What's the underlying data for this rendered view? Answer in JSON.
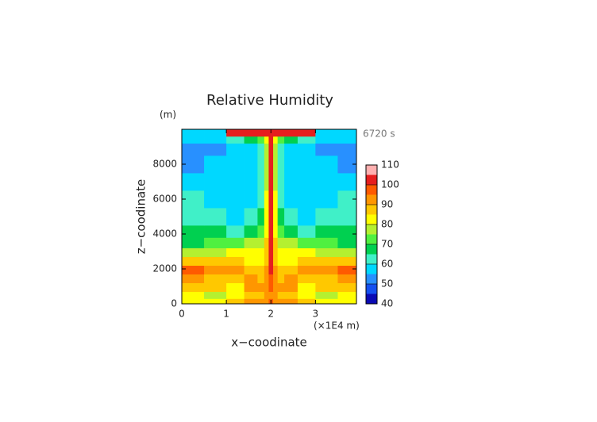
{
  "chart_data": {
    "type": "contour",
    "title": "Relative Humidity",
    "x_label": "x−coodinate",
    "y_label": "z−coodinate",
    "x_unit": "(×1E4 m)",
    "y_unit": "(m)",
    "annotation": "6720 s",
    "xlim": [
      0,
      3.92
    ],
    "xticks": [
      0,
      1,
      2,
      3
    ],
    "ylim": [
      0,
      10000
    ],
    "yticks": [
      0,
      2000,
      4000,
      6000,
      8000
    ],
    "x_edges": [
      0,
      0.5,
      1.0,
      1.4,
      1.7,
      1.85,
      1.95,
      2.05,
      2.15,
      2.3,
      2.6,
      3.0,
      3.5,
      3.92
    ],
    "y_edges": [
      0,
      300,
      700,
      1200,
      1700,
      2200,
      2700,
      3200,
      3800,
      4500,
      5500,
      6500,
      7500,
      8500,
      9200,
      9600,
      10000
    ],
    "z": [
      [
        82,
        82,
        88,
        92,
        92,
        92,
        95,
        92,
        92,
        92,
        88,
        82,
        82
      ],
      [
        82,
        78,
        82,
        88,
        88,
        90,
        92,
        90,
        88,
        88,
        82,
        78,
        82
      ],
      [
        88,
        88,
        82,
        90,
        90,
        92,
        95,
        92,
        90,
        90,
        82,
        88,
        88
      ],
      [
        90,
        88,
        88,
        90,
        88,
        92,
        97,
        92,
        88,
        90,
        88,
        88,
        90
      ],
      [
        97,
        92,
        90,
        88,
        88,
        92,
        102,
        92,
        88,
        88,
        90,
        92,
        97
      ],
      [
        88,
        88,
        86,
        84,
        84,
        88,
        102,
        88,
        84,
        84,
        86,
        88,
        88
      ],
      [
        76,
        78,
        82,
        82,
        82,
        88,
        102,
        88,
        82,
        82,
        82,
        78,
        76
      ],
      [
        68,
        72,
        72,
        76,
        78,
        85,
        102,
        85,
        78,
        76,
        72,
        72,
        68
      ],
      [
        66,
        66,
        62,
        68,
        72,
        82,
        102,
        82,
        72,
        68,
        62,
        66,
        66
      ],
      [
        62,
        62,
        58,
        62,
        66,
        82,
        102,
        82,
        66,
        62,
        58,
        62,
        62
      ],
      [
        62,
        58,
        57,
        57,
        62,
        80,
        102,
        80,
        62,
        57,
        57,
        58,
        62
      ],
      [
        57,
        57,
        57,
        57,
        62,
        78,
        102,
        78,
        62,
        57,
        57,
        57,
        57
      ],
      [
        52,
        57,
        57,
        57,
        62,
        78,
        102,
        78,
        62,
        57,
        57,
        57,
        52
      ],
      [
        52,
        52,
        57,
        57,
        62,
        78,
        102,
        78,
        62,
        57,
        57,
        52,
        52
      ],
      [
        57,
        57,
        62,
        68,
        72,
        82,
        102,
        82,
        72,
        68,
        62,
        57,
        57
      ],
      [
        57,
        57,
        102,
        102,
        102,
        102,
        102,
        102,
        102,
        102,
        102,
        57,
        57
      ]
    ],
    "clim": [
      40,
      110
    ],
    "cticks": [
      40,
      50,
      60,
      70,
      80,
      90,
      100,
      110
    ],
    "colors": [
      "#0a0ab4",
      "#1450f0",
      "#2890ff",
      "#00d8ff",
      "#40f0c8",
      "#00d050",
      "#50f040",
      "#b4f030",
      "#ffff00",
      "#ffc800",
      "#ff9600",
      "#ff5a00",
      "#e61e1e",
      "#ffb0b0"
    ]
  }
}
